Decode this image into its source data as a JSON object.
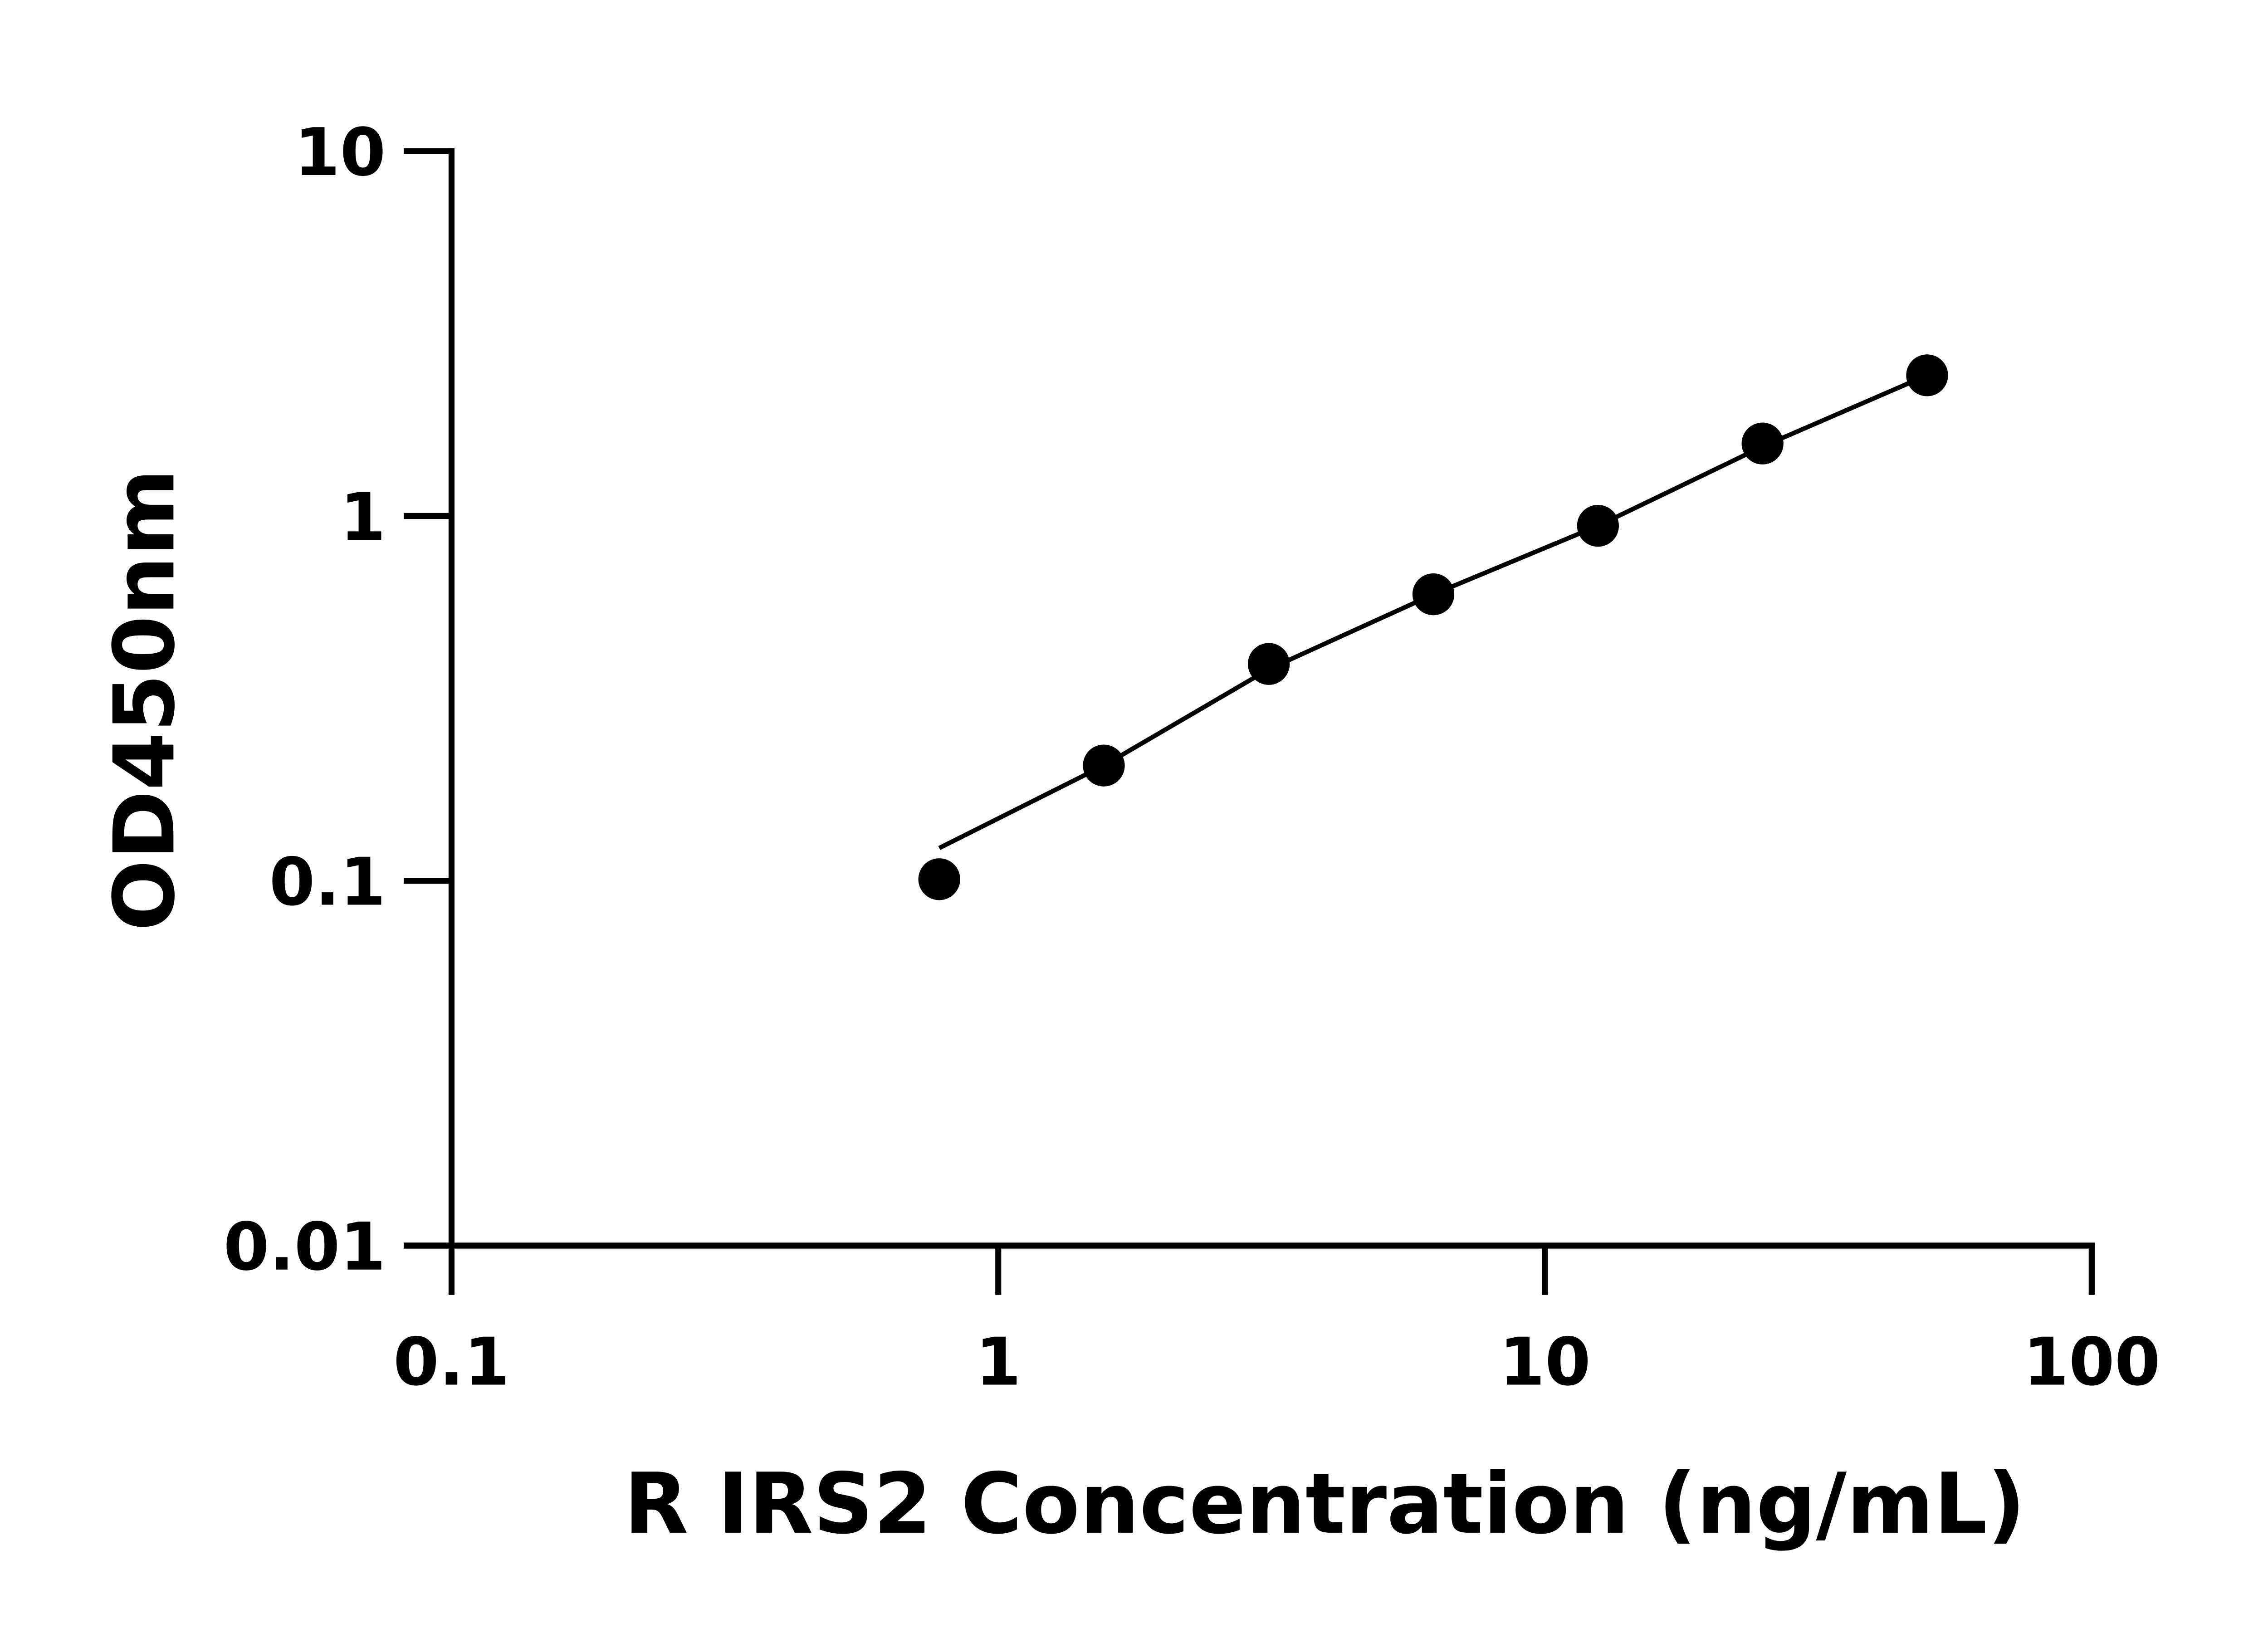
{
  "chart_data": {
    "type": "scatter",
    "title": "",
    "xlabel": "R IRS2 Concentration (ng/mL)",
    "ylabel": "OD450nm",
    "xscale": "log",
    "yscale": "log",
    "xlim": [
      0.1,
      100
    ],
    "ylim": [
      0.01,
      10
    ],
    "xticks": [
      "0.1",
      "1",
      "10",
      "100"
    ],
    "yticks": [
      "0.01",
      "0.1",
      "1",
      "10"
    ],
    "grid": false,
    "x": [
      0.78,
      1.56,
      3.125,
      6.25,
      12.5,
      25,
      50
    ],
    "y": [
      0.101,
      0.207,
      0.393,
      0.61,
      0.94,
      1.58,
      2.43
    ],
    "fit_line": {
      "x": [
        0.78,
        1.56,
        3.125,
        6.25,
        12.5,
        25,
        50
      ],
      "y": [
        0.123,
        0.207,
        0.38,
        0.61,
        0.94,
        1.55,
        2.43
      ]
    },
    "marker_color": "#000000",
    "line_color": "#000000"
  }
}
